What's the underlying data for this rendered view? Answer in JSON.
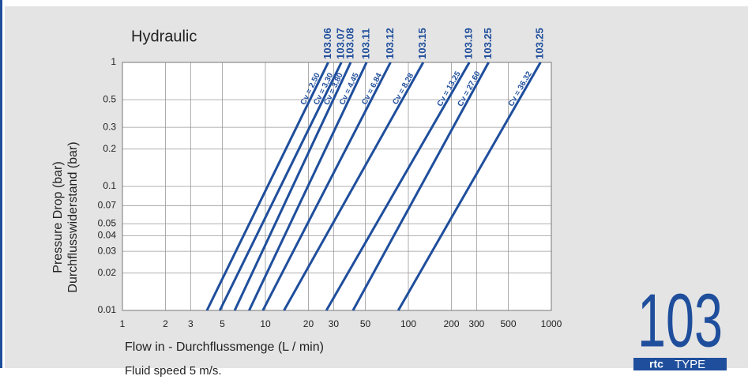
{
  "chart_data": {
    "type": "line",
    "title": "Hydraulic",
    "ylabel": [
      "Pressure Drop (bar)",
      "Durchflusswiderstand (bar)"
    ],
    "xlabel": "Flow in - Durchflussmenge (L / min)",
    "note": "Fluid speed 5 m/s.",
    "logo": {
      "number": "103",
      "brand": "rtc",
      "word": "TYPE"
    },
    "xscale": "log",
    "yscale": "log",
    "grid": true,
    "color": "#1f4e9c",
    "xlim": [
      1,
      1000
    ],
    "xticks": [
      1,
      2,
      3,
      5,
      10,
      20,
      30,
      50,
      100,
      200,
      300,
      500,
      1000
    ],
    "ylim": [
      0.01,
      1
    ],
    "yticks": [
      0.01,
      0.02,
      0.03,
      0.04,
      0.05,
      0.07,
      0.1,
      0.2,
      0.3,
      0.5,
      1
    ],
    "series": [
      {
        "name": "103.06",
        "label": "Cv = 2.50",
        "x": [
          3.9,
          27.5
        ],
        "values": [
          0.01,
          1
        ]
      },
      {
        "name": "103.07",
        "label": "Cv = 3.30",
        "x": [
          4.8,
          34
        ],
        "values": [
          0.01,
          1
        ]
      },
      {
        "name": "103.08",
        "label": "Cv = 3.80",
        "x": [
          6.1,
          39.5
        ],
        "values": [
          0.01,
          1
        ]
      },
      {
        "name": "103.11",
        "label": "Cv = 4.45",
        "x": [
          7.7,
          51
        ],
        "values": [
          0.01,
          1
        ]
      },
      {
        "name": "103.12",
        "label": "Cv = 6.84",
        "x": [
          9.6,
          75
        ],
        "values": [
          0.01,
          1
        ]
      },
      {
        "name": "103.15",
        "label": "Cv = 8.28",
        "x": [
          13.5,
          127
        ],
        "values": [
          0.01,
          1
        ]
      },
      {
        "name": "103.19",
        "label": "Cv = 13.25",
        "x": [
          26.7,
          267
        ],
        "values": [
          0.01,
          1
        ]
      },
      {
        "name": "103.25",
        "label": "Cv = 27.60",
        "x": [
          41,
          364
        ],
        "values": [
          0.01,
          1
        ]
      },
      {
        "name": "103.25",
        "label": "Cv = 36.32",
        "x": [
          85,
          840
        ],
        "values": [
          0.01,
          1
        ]
      }
    ]
  }
}
